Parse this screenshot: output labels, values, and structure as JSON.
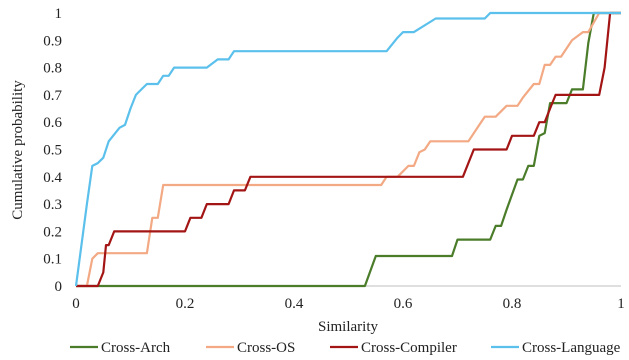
{
  "chart_data": {
    "type": "line",
    "title": "",
    "xlabel": "Similarity",
    "ylabel": "Cumulative probability",
    "xlim": [
      0,
      1
    ],
    "ylim": [
      0,
      1
    ],
    "x_ticks": [
      0,
      0.2,
      0.4,
      0.6,
      0.8,
      1
    ],
    "x_tick_labels": [
      "0",
      "0.2",
      "0.4",
      "0.6",
      "0.8",
      "1"
    ],
    "y_ticks": [
      0,
      0.1,
      0.2,
      0.3,
      0.4,
      0.5,
      0.6,
      0.7,
      0.8,
      0.9,
      1
    ],
    "y_tick_labels": [
      "0",
      "0.1",
      "0.2",
      "0.3",
      "0.4",
      "0.5",
      "0.6",
      "0.7",
      "0.8",
      "0.9",
      "1"
    ],
    "grid": false,
    "legend_position": "bottom",
    "series": [
      {
        "name": "Cross-Arch",
        "color": "#4a7c2a",
        "points": [
          [
            0,
            0
          ],
          [
            0.53,
            0
          ],
          [
            0.55,
            0.11
          ],
          [
            0.69,
            0.11
          ],
          [
            0.7,
            0.17
          ],
          [
            0.76,
            0.17
          ],
          [
            0.77,
            0.22
          ],
          [
            0.78,
            0.22
          ],
          [
            0.79,
            0.28
          ],
          [
            0.81,
            0.39
          ],
          [
            0.82,
            0.39
          ],
          [
            0.83,
            0.44
          ],
          [
            0.84,
            0.44
          ],
          [
            0.85,
            0.55
          ],
          [
            0.86,
            0.56
          ],
          [
            0.87,
            0.67
          ],
          [
            0.9,
            0.67
          ],
          [
            0.91,
            0.72
          ],
          [
            0.93,
            0.72
          ],
          [
            0.94,
            0.89
          ],
          [
            0.95,
            1.0
          ],
          [
            1,
            1.0
          ]
        ]
      },
      {
        "name": "Cross-OS",
        "color": "#f2a984",
        "points": [
          [
            0,
            0
          ],
          [
            0.02,
            0
          ],
          [
            0.03,
            0.1
          ],
          [
            0.04,
            0.12
          ],
          [
            0.13,
            0.12
          ],
          [
            0.14,
            0.25
          ],
          [
            0.15,
            0.25
          ],
          [
            0.16,
            0.37
          ],
          [
            0.56,
            0.37
          ],
          [
            0.57,
            0.4
          ],
          [
            0.59,
            0.4
          ],
          [
            0.61,
            0.44
          ],
          [
            0.62,
            0.44
          ],
          [
            0.63,
            0.49
          ],
          [
            0.64,
            0.5
          ],
          [
            0.65,
            0.53
          ],
          [
            0.72,
            0.53
          ],
          [
            0.74,
            0.59
          ],
          [
            0.75,
            0.62
          ],
          [
            0.77,
            0.62
          ],
          [
            0.79,
            0.66
          ],
          [
            0.81,
            0.66
          ],
          [
            0.82,
            0.69
          ],
          [
            0.84,
            0.74
          ],
          [
            0.85,
            0.74
          ],
          [
            0.86,
            0.81
          ],
          [
            0.87,
            0.81
          ],
          [
            0.88,
            0.84
          ],
          [
            0.89,
            0.84
          ],
          [
            0.91,
            0.9
          ],
          [
            0.93,
            0.93
          ],
          [
            0.94,
            0.93
          ],
          [
            0.96,
            1.0
          ],
          [
            1,
            1.0
          ]
        ]
      },
      {
        "name": "Cross-Compiler",
        "color": "#a31515",
        "points": [
          [
            0,
            0
          ],
          [
            0.04,
            0
          ],
          [
            0.05,
            0.05
          ],
          [
            0.055,
            0.15
          ],
          [
            0.06,
            0.15
          ],
          [
            0.07,
            0.2
          ],
          [
            0.2,
            0.2
          ],
          [
            0.21,
            0.25
          ],
          [
            0.23,
            0.25
          ],
          [
            0.24,
            0.3
          ],
          [
            0.28,
            0.3
          ],
          [
            0.29,
            0.35
          ],
          [
            0.31,
            0.35
          ],
          [
            0.32,
            0.4
          ],
          [
            0.71,
            0.4
          ],
          [
            0.73,
            0.5
          ],
          [
            0.79,
            0.5
          ],
          [
            0.8,
            0.55
          ],
          [
            0.84,
            0.55
          ],
          [
            0.85,
            0.6
          ],
          [
            0.86,
            0.6
          ],
          [
            0.87,
            0.65
          ],
          [
            0.88,
            0.7
          ],
          [
            0.96,
            0.7
          ],
          [
            0.97,
            0.8
          ],
          [
            0.98,
            1.0
          ],
          [
            1,
            1.0
          ]
        ]
      },
      {
        "name": "Cross-Language",
        "color": "#5bc0eb",
        "points": [
          [
            0,
            0
          ],
          [
            0.02,
            0.3
          ],
          [
            0.03,
            0.44
          ],
          [
            0.04,
            0.45
          ],
          [
            0.05,
            0.47
          ],
          [
            0.06,
            0.53
          ],
          [
            0.08,
            0.58
          ],
          [
            0.09,
            0.59
          ],
          [
            0.1,
            0.65
          ],
          [
            0.11,
            0.7
          ],
          [
            0.12,
            0.72
          ],
          [
            0.13,
            0.74
          ],
          [
            0.15,
            0.74
          ],
          [
            0.16,
            0.77
          ],
          [
            0.17,
            0.77
          ],
          [
            0.18,
            0.8
          ],
          [
            0.24,
            0.8
          ],
          [
            0.26,
            0.83
          ],
          [
            0.28,
            0.83
          ],
          [
            0.29,
            0.86
          ],
          [
            0.57,
            0.86
          ],
          [
            0.59,
            0.91
          ],
          [
            0.6,
            0.93
          ],
          [
            0.62,
            0.93
          ],
          [
            0.66,
            0.98
          ],
          [
            0.75,
            0.98
          ],
          [
            0.76,
            1.0
          ],
          [
            1,
            1.0
          ]
        ]
      }
    ]
  }
}
